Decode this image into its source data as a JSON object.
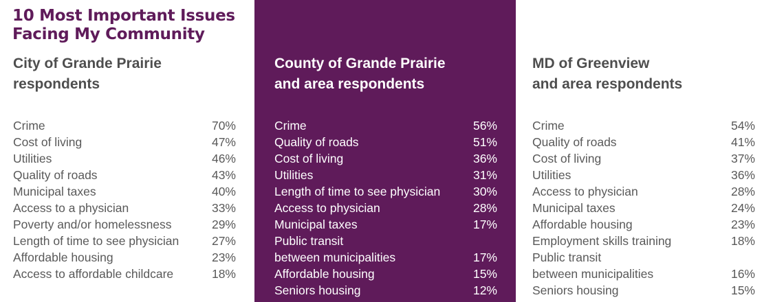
{
  "title": [
    "10 Most Important Issues",
    "Facing My Community"
  ],
  "colors": {
    "accent": "#5f1b5a",
    "text": "#595959",
    "heading": "#4e4e4e"
  },
  "panels": [
    {
      "heading": [
        "City of Grande Prairie",
        "respondents"
      ],
      "rows": [
        {
          "label": "Crime",
          "pct": "70%"
        },
        {
          "label": "Cost of living",
          "pct": "47%"
        },
        {
          "label": "Utilities",
          "pct": "46%"
        },
        {
          "label": "Quality of roads",
          "pct": "43%"
        },
        {
          "label": "Municipal taxes",
          "pct": "40%"
        },
        {
          "label": "Access to a physician",
          "pct": "33%"
        },
        {
          "label": "Poverty and/or homelessness",
          "pct": "29%"
        },
        {
          "label": "Length of time to see physician",
          "pct": "27%"
        },
        {
          "label": "Affordable housing",
          "pct": "23%"
        },
        {
          "label": "Access to affordable childcare",
          "pct": "18%"
        }
      ]
    },
    {
      "heading": [
        "County of Grande Prairie",
        "and area respondents"
      ],
      "rows": [
        {
          "label": "Crime",
          "pct": "56%"
        },
        {
          "label": "Quality of roads",
          "pct": "51%"
        },
        {
          "label": "Cost of living",
          "pct": "36%"
        },
        {
          "label": "Utilities",
          "pct": "31%"
        },
        {
          "label": "Length of time to see physician",
          "pct": "30%"
        },
        {
          "label": "Access to physician",
          "pct": "28%"
        },
        {
          "label": "Municipal taxes",
          "pct": "17%"
        },
        {
          "label": "Public transit\nbetween municipalities",
          "pct": "17%"
        },
        {
          "label": "Affordable housing",
          "pct": "15%"
        },
        {
          "label": "Seniors housing",
          "pct": "12%"
        }
      ]
    },
    {
      "heading": [
        "MD of Greenview",
        "and area respondents"
      ],
      "rows": [
        {
          "label": "Crime",
          "pct": "54%"
        },
        {
          "label": "Quality of roads",
          "pct": "41%"
        },
        {
          "label": "Cost of living",
          "pct": "37%"
        },
        {
          "label": "Utilities",
          "pct": "36%"
        },
        {
          "label": "Access to physician",
          "pct": "28%"
        },
        {
          "label": "Municipal taxes",
          "pct": "24%"
        },
        {
          "label": "Affordable housing",
          "pct": "23%"
        },
        {
          "label": "Employment skills training",
          "pct": "18%"
        },
        {
          "label": "Public transit\nbetween municipalities",
          "pct": "16%"
        },
        {
          "label": "Seniors housing",
          "pct": "15%"
        }
      ]
    }
  ]
}
